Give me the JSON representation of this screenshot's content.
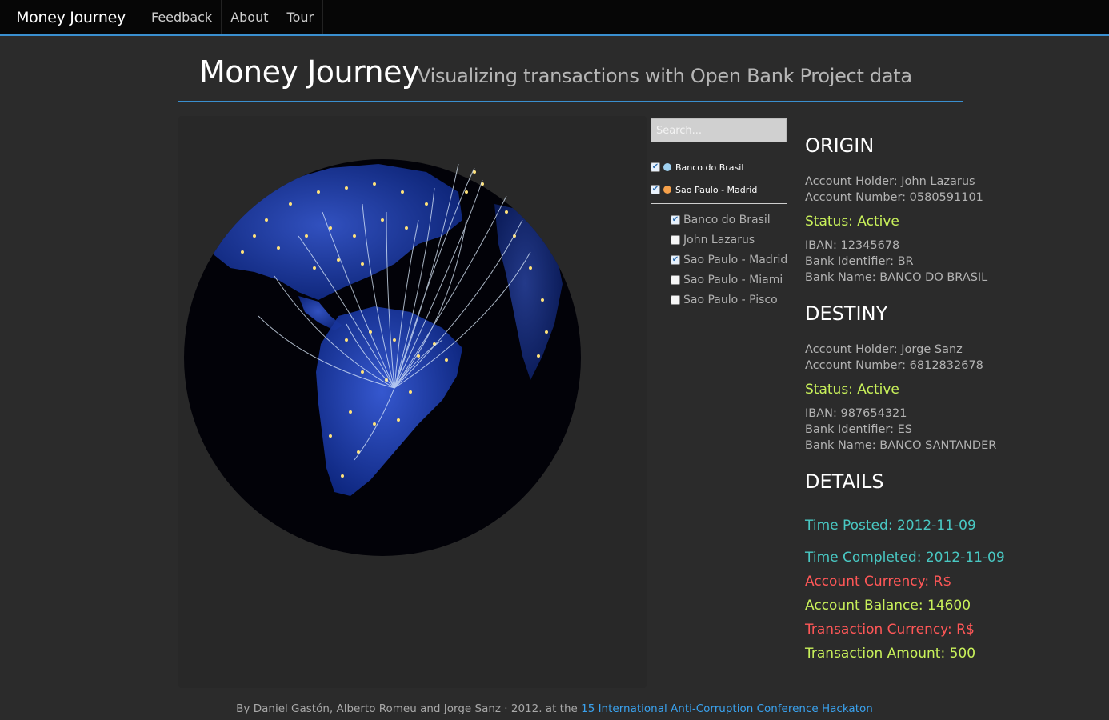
{
  "navbar": {
    "brand": "Money Journey",
    "links": [
      "Feedback",
      "About",
      "Tour"
    ]
  },
  "header": {
    "title": "Money Journey",
    "subtitle": "Visualizing transactions with Open Bank Project data"
  },
  "search": {
    "placeholder": "Search..."
  },
  "legend": [
    {
      "label": "Banco do Brasil",
      "checked": true,
      "color": "#9fd0f0"
    },
    {
      "label": "Sao Paulo - Madrid",
      "checked": true,
      "color": "#f5a04a"
    }
  ],
  "filters": [
    {
      "label": "Banco do Brasil",
      "checked": true
    },
    {
      "label": "John Lazarus",
      "checked": false
    },
    {
      "label": "Sao Paulo - Madrid",
      "checked": true
    },
    {
      "label": "Sao Paulo - Miami",
      "checked": false
    },
    {
      "label": "Sao Paulo - Pisco",
      "checked": false
    }
  ],
  "origin": {
    "heading": "ORIGIN",
    "holder": "Account Holder: John Lazarus",
    "number": "Account Number: 0580591101",
    "status": "Status: Active",
    "iban": "IBAN: 12345678",
    "bank_id": "Bank Identifier: BR",
    "bank_name": "Bank Name: BANCO DO BRASIL"
  },
  "destiny": {
    "heading": "DESTINY",
    "holder": "Account Holder: Jorge Sanz",
    "number": "Account Number: 6812832678",
    "status": "Status: Active",
    "iban": "IBAN: 987654321",
    "bank_id": "Bank Identifier: ES",
    "bank_name": "Bank Name: BANCO SANTANDER"
  },
  "details": {
    "heading": "DETAILS",
    "time_posted": "Time Posted: 2012-11-09",
    "time_completed": "Time Completed: 2012-11-09",
    "account_currency": "Account Currency: R$",
    "account_balance": "Account Balance: 14600",
    "transaction_currency": "Transaction Currency: R$",
    "transaction_amount": "Transaction Amount: 500"
  },
  "footer": {
    "text": "By Daniel Gastón, Alberto Romeu and Jorge Sanz · 2012. at the",
    "link": "15 International Anti-Corruption Conference Hackaton"
  },
  "colors": {
    "accent": "#3a8fcf",
    "status_active": "#c8f05a",
    "teal": "#49c8c3",
    "red": "#ff5757",
    "link": "#3aa2ee"
  }
}
